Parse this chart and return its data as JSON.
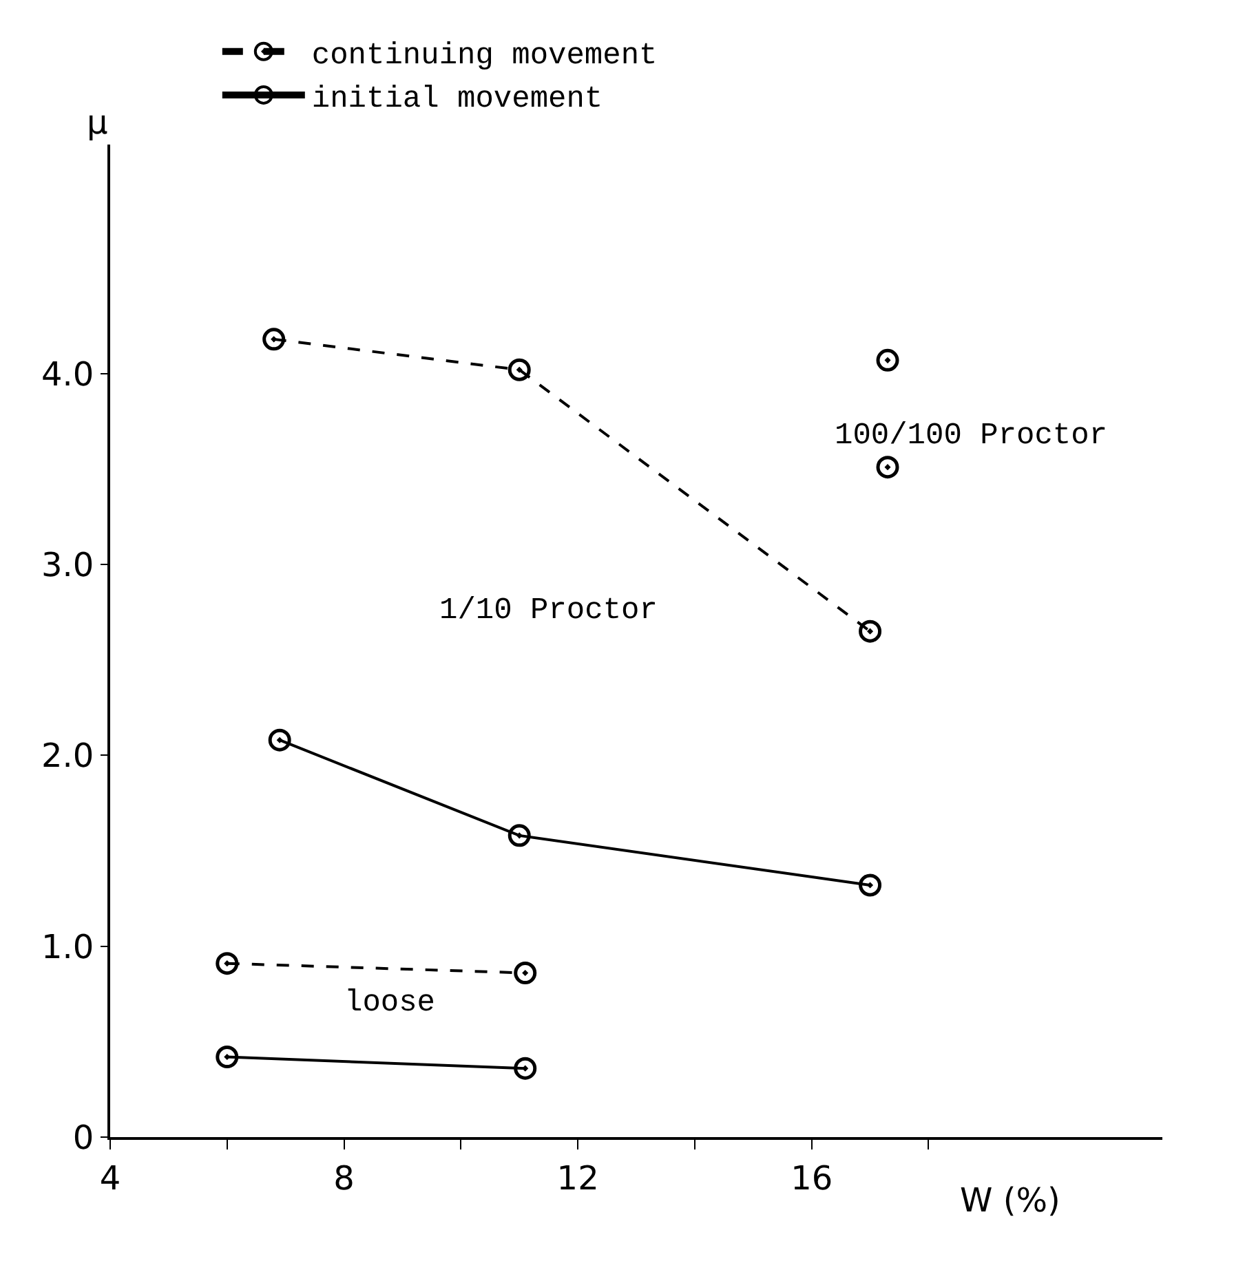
{
  "chart_data": {
    "type": "line",
    "xlabel": "W (%)",
    "ylabel": "μ",
    "series": [
      {
        "name": "continuing movement",
        "color": "#000000",
        "line_style": "dashed",
        "x": [
          6.0,
          11.1,
          null,
          6.8,
          11.0,
          17.0
        ],
        "values": [
          0.91,
          0.86,
          null,
          4.18,
          4.02,
          2.65
        ]
      },
      {
        "name": "initial movement",
        "color": "#000000",
        "line_style": "solid",
        "x": [
          6.0,
          11.1,
          null,
          6.9,
          11.0,
          17.0
        ],
        "values": [
          0.42,
          0.36,
          null,
          2.08,
          1.58,
          1.32
        ]
      },
      {
        "type": "scatter",
        "color": "#000000",
        "x": [
          17.3,
          17.3
        ],
        "values": [
          4.07,
          3.51
        ]
      }
    ],
    "marker": "circle",
    "xlim": [
      4,
      22
    ],
    "xticks": [
      4,
      {
        "value": 6,
        "label": null
      },
      8,
      {
        "value": 10,
        "label": null
      },
      12,
      {
        "value": 14,
        "label": null
      },
      16,
      {
        "value": 18,
        "label": null
      }
    ],
    "ylim": [
      0,
      5.2
    ],
    "yticks": [
      {
        "value": 0,
        "label": "0"
      },
      {
        "value": 1,
        "label": "1.0"
      },
      {
        "value": 2,
        "label": "2.0"
      },
      {
        "value": 3,
        "label": "3.0"
      },
      {
        "value": 4,
        "label": "4.0"
      }
    ],
    "legend": "top",
    "annotations": [
      "1/10 Proctor",
      "100/100 Proctor",
      "loose"
    ]
  }
}
